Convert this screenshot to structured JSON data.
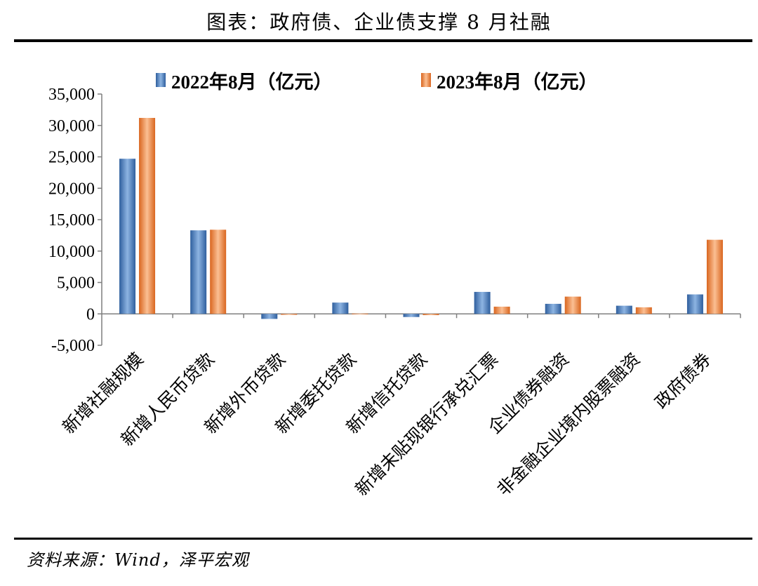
{
  "header": {
    "title": "图表：政府债、企业债支撑 8 月社融"
  },
  "footer": {
    "source": "资料来源：Wind，泽平宏观"
  },
  "chart_data": {
    "type": "bar",
    "categories": [
      "新增社融规模",
      "新增人民币贷款",
      "新增外币贷款",
      "新增委托贷款",
      "新增信托贷款",
      "新增未贴现银行承兑汇票",
      "企业债券融资",
      "非金融企业境内股票融资",
      "政府债券"
    ],
    "series": [
      {
        "name": "2022年8月（亿元）",
        "color": "#4a7ebb",
        "values": [
          24700,
          13300,
          -800,
          1800,
          -500,
          3500,
          1600,
          1300,
          3100
        ]
      },
      {
        "name": "2023年8月（亿元）",
        "color": "#f08a4b",
        "values": [
          31200,
          13400,
          -150,
          50,
          -200,
          1150,
          2750,
          1050,
          11800
        ]
      }
    ],
    "yticks": [
      "35,000",
      "30,000",
      "25,000",
      "20,000",
      "15,000",
      "10,000",
      "5,000",
      "0",
      "-5,000"
    ],
    "ylim": [
      -5000,
      35000
    ],
    "legend_position": "top",
    "grid": false
  }
}
